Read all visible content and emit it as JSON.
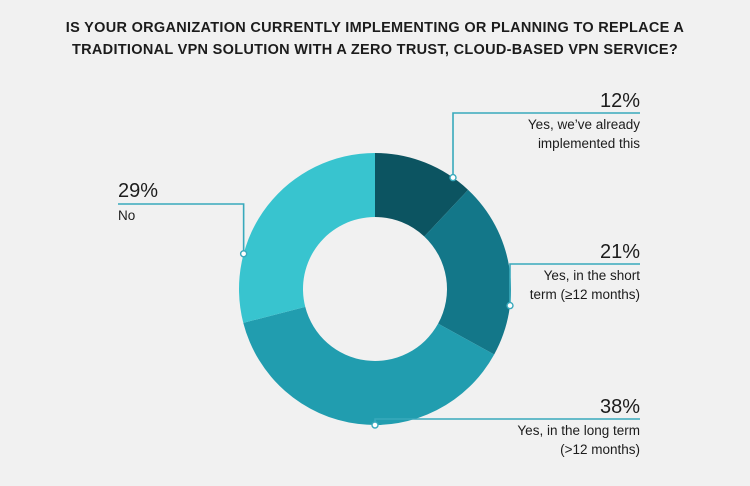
{
  "chart_data": {
    "type": "pie",
    "title_lines": [
      "IS YOUR ORGANIZATION CURRENTLY IMPLEMENTING OR PLANNING TO REPLACE A",
      "TRADITIONAL VPN SOLUTION WITH A ZERO TRUST, CLOUD-BASED VPN SERVICE?"
    ],
    "donut": true,
    "slices": [
      {
        "value": 12,
        "value_label": "12%",
        "label_lines": [
          "Yes, we’ve already",
          "implemented this"
        ],
        "color": "#0c5461",
        "label_side": "right"
      },
      {
        "value": 21,
        "value_label": "21%",
        "label_lines": [
          "Yes, in the short",
          "term (≥12 months)"
        ],
        "color": "#137789",
        "label_side": "right"
      },
      {
        "value": 38,
        "value_label": "38%",
        "label_lines": [
          "Yes, in the long term",
          "(>12 months)"
        ],
        "color": "#219daf",
        "label_side": "right"
      },
      {
        "value": 29,
        "value_label": "29%",
        "label_lines": [
          "No"
        ],
        "color": "#38c4cf",
        "label_side": "left"
      }
    ],
    "leader_color": "#38a9bc"
  }
}
